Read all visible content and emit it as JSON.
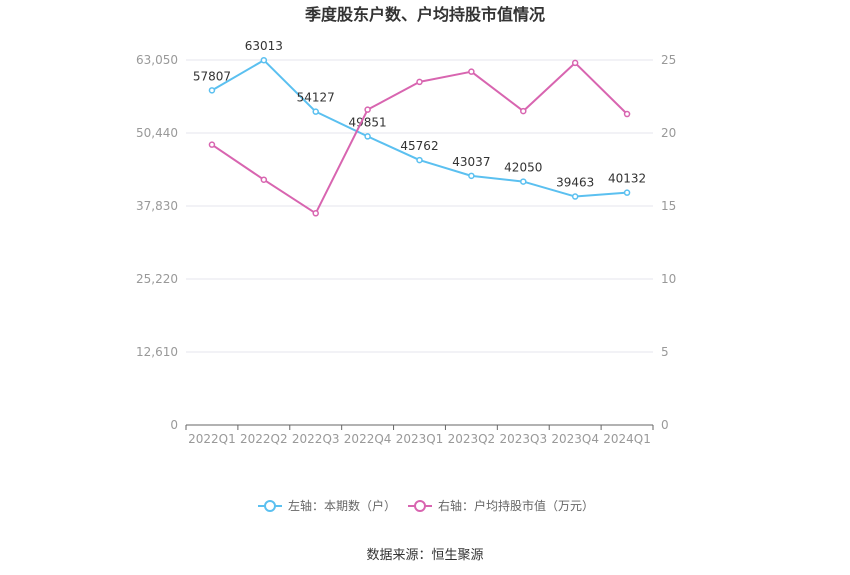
{
  "title": "季度股东户数、户均持股市值情况",
  "source": "数据来源：恒生聚源",
  "colors": {
    "left_series": "#5bc0f0",
    "right_series": "#d865b0",
    "grid": "#e6e6ee",
    "axis": "#666666"
  },
  "chart_data": {
    "type": "line",
    "title": "季度股东户数、户均持股市值情况",
    "categories": [
      "2022Q1",
      "2022Q2",
      "2022Q3",
      "2022Q4",
      "2023Q1",
      "2023Q2",
      "2023Q3",
      "2023Q4",
      "2024Q1"
    ],
    "left_axis": {
      "ylim": [
        0,
        63050
      ],
      "ticks": [
        "0",
        "12,610",
        "25,220",
        "37,830",
        "50,440",
        "63,050"
      ]
    },
    "right_axis": {
      "ylim": [
        0,
        25
      ],
      "ticks": [
        "0",
        "5",
        "10",
        "15",
        "20",
        "25"
      ]
    },
    "series": [
      {
        "name": "左轴：本期数（户）",
        "axis": "left",
        "show_labels": true,
        "values": [
          57807,
          63013,
          54127,
          49851,
          45762,
          43037,
          42050,
          39463,
          40132
        ],
        "labels": [
          "57807",
          "63013",
          "54127",
          "49851",
          "45762",
          "43037",
          "42050",
          "39463",
          "40132"
        ]
      },
      {
        "name": "右轴：户均持股市值（万元）",
        "axis": "right",
        "show_labels": false,
        "values": [
          19.2,
          16.8,
          14.5,
          21.6,
          23.5,
          24.2,
          21.5,
          24.8,
          21.3
        ]
      }
    ],
    "grid": true,
    "legend_position": "bottom"
  }
}
